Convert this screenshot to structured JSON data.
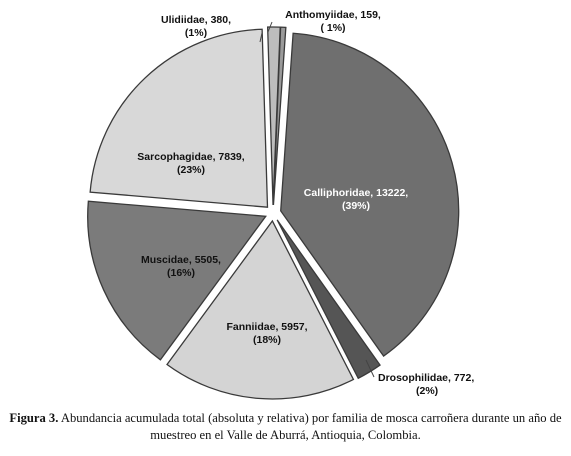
{
  "chart_data": {
    "type": "pie",
    "slices": [
      {
        "name": "Calliphoridae",
        "value": 13222,
        "percent": "(39%)",
        "label": "Calliphoridae, 13222,",
        "color": "#6f6f6f",
        "text_color": "#ffffff"
      },
      {
        "name": "Drosophilidae",
        "value": 772,
        "percent": "(2%)",
        "label": "Drosophilidae, 772,",
        "color": "#555555",
        "text_color": "#111111"
      },
      {
        "name": "Fanniidae",
        "value": 5957,
        "percent": "(18%)",
        "label": "Fanniidae, 5957,",
        "color": "#d4d4d4",
        "text_color": "#111111"
      },
      {
        "name": "Muscidae",
        "value": 5505,
        "percent": "(16%)",
        "label": "Muscidae, 5505,",
        "color": "#7b7b7b",
        "text_color": "#111111"
      },
      {
        "name": "Sarcophagidae",
        "value": 7839,
        "percent": "(23%)",
        "label": "Sarcophagidae, 7839,",
        "color": "#d8d8d8",
        "text_color": "#111111"
      },
      {
        "name": "Ulidiidae",
        "value": 380,
        "percent": "(1%)",
        "label": "Ulidiidae, 380,",
        "color": "#bdbdbd",
        "text_color": "#111111"
      },
      {
        "name": "Anthomyiidae",
        "value": 159,
        "percent": "( 1%)",
        "label": "Anthomyiidae, 159,",
        "color": "#9a9a9a",
        "text_color": "#111111"
      }
    ],
    "exploded": true
  },
  "caption": {
    "label": "Figura 3.",
    "text": "Abundancia acumulada total (absoluta y relativa) por familia de mosca carroñera durante un año de muestreo en el Valle de Aburrá, Antioquia, Colombia."
  }
}
